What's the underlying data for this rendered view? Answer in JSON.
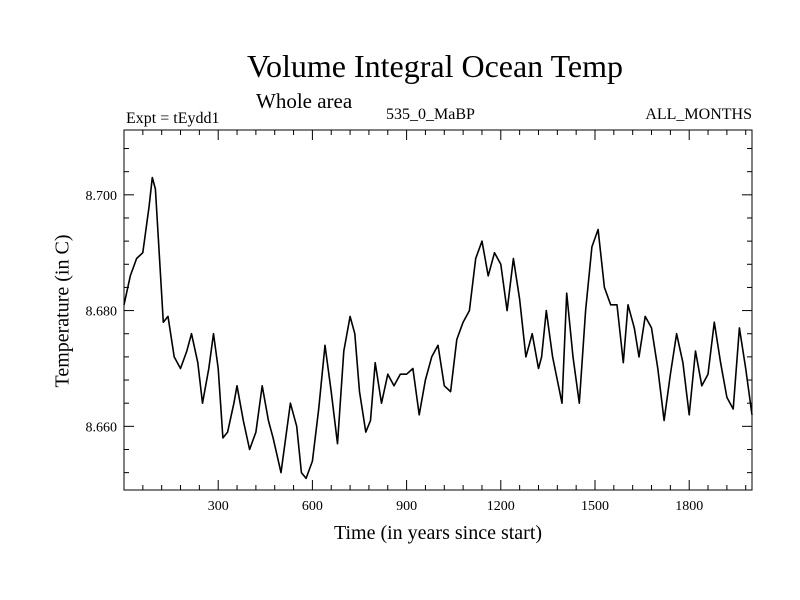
{
  "chart_data": {
    "type": "line",
    "title": "Volume Integral Ocean Temp",
    "subtitle": "Whole area",
    "experiment_label": "Expt = tEydd1",
    "period_label": "535_0_MaBP",
    "months_label": "ALL_MONTHS",
    "xlabel": "Time (in years since start)",
    "ylabel": "Temperature (in C)",
    "xlim": [
      0,
      2000
    ],
    "ylim": [
      8.649,
      8.7112
    ],
    "x_ticks": [
      300,
      600,
      900,
      1200,
      1500,
      1800
    ],
    "x_tick_labels": [
      "300",
      "600",
      "900",
      "1200",
      "1500",
      "1800"
    ],
    "y_ticks": [
      8.66,
      8.68,
      8.7
    ],
    "y_tick_labels": [
      "8.660",
      "8.680",
      "8.700"
    ],
    "grid": false,
    "series": [
      {
        "name": "Volume Integral Ocean Temp",
        "x": [
          0,
          20,
          40,
          60,
          80,
          90,
          100,
          110,
          125,
          140,
          160,
          180,
          200,
          215,
          235,
          250,
          270,
          285,
          300,
          315,
          330,
          350,
          360,
          380,
          400,
          420,
          440,
          460,
          475,
          500,
          515,
          530,
          550,
          565,
          580,
          600,
          620,
          640,
          660,
          680,
          700,
          720,
          735,
          750,
          770,
          785,
          800,
          820,
          840,
          860,
          880,
          900,
          920,
          940,
          960,
          980,
          1000,
          1020,
          1040,
          1060,
          1080,
          1100,
          1120,
          1140,
          1160,
          1180,
          1200,
          1220,
          1240,
          1260,
          1280,
          1300,
          1320,
          1330,
          1345,
          1365,
          1380,
          1395,
          1410,
          1430,
          1450,
          1470,
          1490,
          1510,
          1530,
          1550,
          1570,
          1590,
          1605,
          1625,
          1640,
          1660,
          1680,
          1700,
          1720,
          1740,
          1760,
          1780,
          1800,
          1820,
          1840,
          1860,
          1880,
          1900,
          1920,
          1940,
          1960,
          1980,
          2000
        ],
        "values": [
          8.681,
          8.686,
          8.689,
          8.69,
          8.698,
          8.703,
          8.701,
          8.692,
          8.678,
          8.679,
          8.672,
          8.67,
          8.673,
          8.676,
          8.671,
          8.664,
          8.67,
          8.676,
          8.67,
          8.658,
          8.659,
          8.664,
          8.667,
          8.661,
          8.656,
          8.659,
          8.667,
          8.661,
          8.658,
          8.652,
          8.658,
          8.664,
          8.66,
          8.652,
          8.651,
          8.654,
          8.663,
          8.674,
          8.666,
          8.657,
          8.673,
          8.679,
          8.676,
          8.666,
          8.659,
          8.661,
          8.671,
          8.664,
          8.669,
          8.667,
          8.669,
          8.669,
          8.67,
          8.662,
          8.668,
          8.672,
          8.674,
          8.667,
          8.666,
          8.675,
          8.678,
          8.68,
          8.689,
          8.692,
          8.686,
          8.69,
          8.688,
          8.68,
          8.689,
          8.682,
          8.672,
          8.676,
          8.67,
          8.672,
          8.68,
          8.672,
          8.668,
          8.664,
          8.683,
          8.672,
          8.664,
          8.68,
          8.691,
          8.694,
          8.684,
          8.681,
          8.681,
          8.671,
          8.681,
          8.677,
          8.672,
          8.679,
          8.677,
          8.67,
          8.661,
          8.669,
          8.676,
          8.671,
          8.662,
          8.673,
          8.667,
          8.669,
          8.678,
          8.671,
          8.665,
          8.663,
          8.677,
          8.67,
          8.662
        ]
      }
    ]
  }
}
